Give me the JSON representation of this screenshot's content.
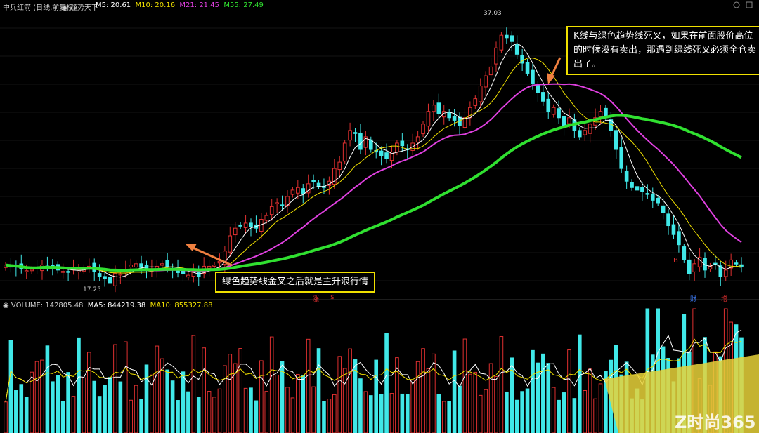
{
  "header": {
    "stock": "中兵红箭 (日线,前复权)",
    "indicator": "趋势天下",
    "ma_labels": [
      {
        "text": "M5: 20.61",
        "color": "#ffffff"
      },
      {
        "text": "M10: 20.16",
        "color": "#f0e000"
      },
      {
        "text": "M21: 21.45",
        "color": "#e040e0"
      },
      {
        "text": "M55: 27.49",
        "color": "#30e030"
      }
    ]
  },
  "volume_header": {
    "title": "VOLUME: 142805.48",
    "ma5": "MA5: 844219.38",
    "ma10": "MA10: 855327.88"
  },
  "annotations": {
    "top": "K线与绿色趋势线死叉，如果在前面股价高位的时候没有卖出，那遇到绿线死叉必须全仓卖出了。",
    "bottom": "绿色趋势线金叉之后就是主升浪行情"
  },
  "price_labels": {
    "high": "37.03",
    "low": "17.25"
  },
  "markers": [
    {
      "text": "涨",
      "color": "#e03030"
    },
    {
      "text": "$",
      "color": "#e03030"
    },
    {
      "text": "B",
      "color": "#e03030"
    },
    {
      "text": "财",
      "color": "#4080ff"
    },
    {
      "text": "增",
      "color": "#e03030"
    }
  ],
  "watermark": "Z时尚365",
  "colors": {
    "up": "#e03030",
    "down": "#40e8e8",
    "ma5": "#ffffff",
    "ma10": "#f0e000",
    "ma21": "#e040e0",
    "ma55": "#30e030",
    "annotation_border": "#f0e000",
    "arrow": "#f08040"
  },
  "chart_data": {
    "type": "candlestick",
    "ylim": [
      16,
      38
    ],
    "closes": [
      17.9,
      17.8,
      17.75,
      17.6,
      17.45,
      17.55,
      17.7,
      17.9,
      17.8,
      17.7,
      17.5,
      17.4,
      17.35,
      17.6,
      17.5,
      17.7,
      17.8,
      17.4,
      17.0,
      16.8,
      16.5,
      17.25,
      17.2,
      17.5,
      17.9,
      18.0,
      17.7,
      17.6,
      17.6,
      17.8,
      18.0,
      17.8,
      17.6,
      17.3,
      17.2,
      17.1,
      17.4,
      17.0,
      17.8,
      17.8,
      17.9,
      18.2,
      19.0,
      20.2,
      20.8,
      21.0,
      21.2,
      20.9,
      20.8,
      21.5,
      21.8,
      22.5,
      22.8,
      22.6,
      23.3,
      23.8,
      24.0,
      23.5,
      24.3,
      24.5,
      24.1,
      24.0,
      24.5,
      25.5,
      26.0,
      27.5,
      28.5,
      28.3,
      27.0,
      28.0,
      27.0,
      26.8,
      26.5,
      26.3,
      26.8,
      27.5,
      27.3,
      27.0,
      27.5,
      28.0,
      29.0,
      30.0,
      30.5,
      29.8,
      30.0,
      29.5,
      29.3,
      28.9,
      29.5,
      30.3,
      31.0,
      32.0,
      32.8,
      33.5,
      35.0,
      36.0,
      35.8,
      35.5,
      34.5,
      33.8,
      33.0,
      32.2,
      31.5,
      30.8,
      30.0,
      30.3,
      29.5,
      28.8,
      29.5,
      28.5,
      28.0,
      28.5,
      29.0,
      29.5,
      30.0,
      29.5,
      28.5,
      27.0,
      25.5,
      24.5,
      24.0,
      23.8,
      23.7,
      23.5,
      23.0,
      22.8,
      22.0,
      21.0,
      20.3,
      19.5,
      18.3,
      17.2,
      18.0,
      18.5,
      17.5,
      17.8,
      18.0,
      17.0,
      17.5,
      18.3,
      18.0,
      17.8
    ]
  }
}
